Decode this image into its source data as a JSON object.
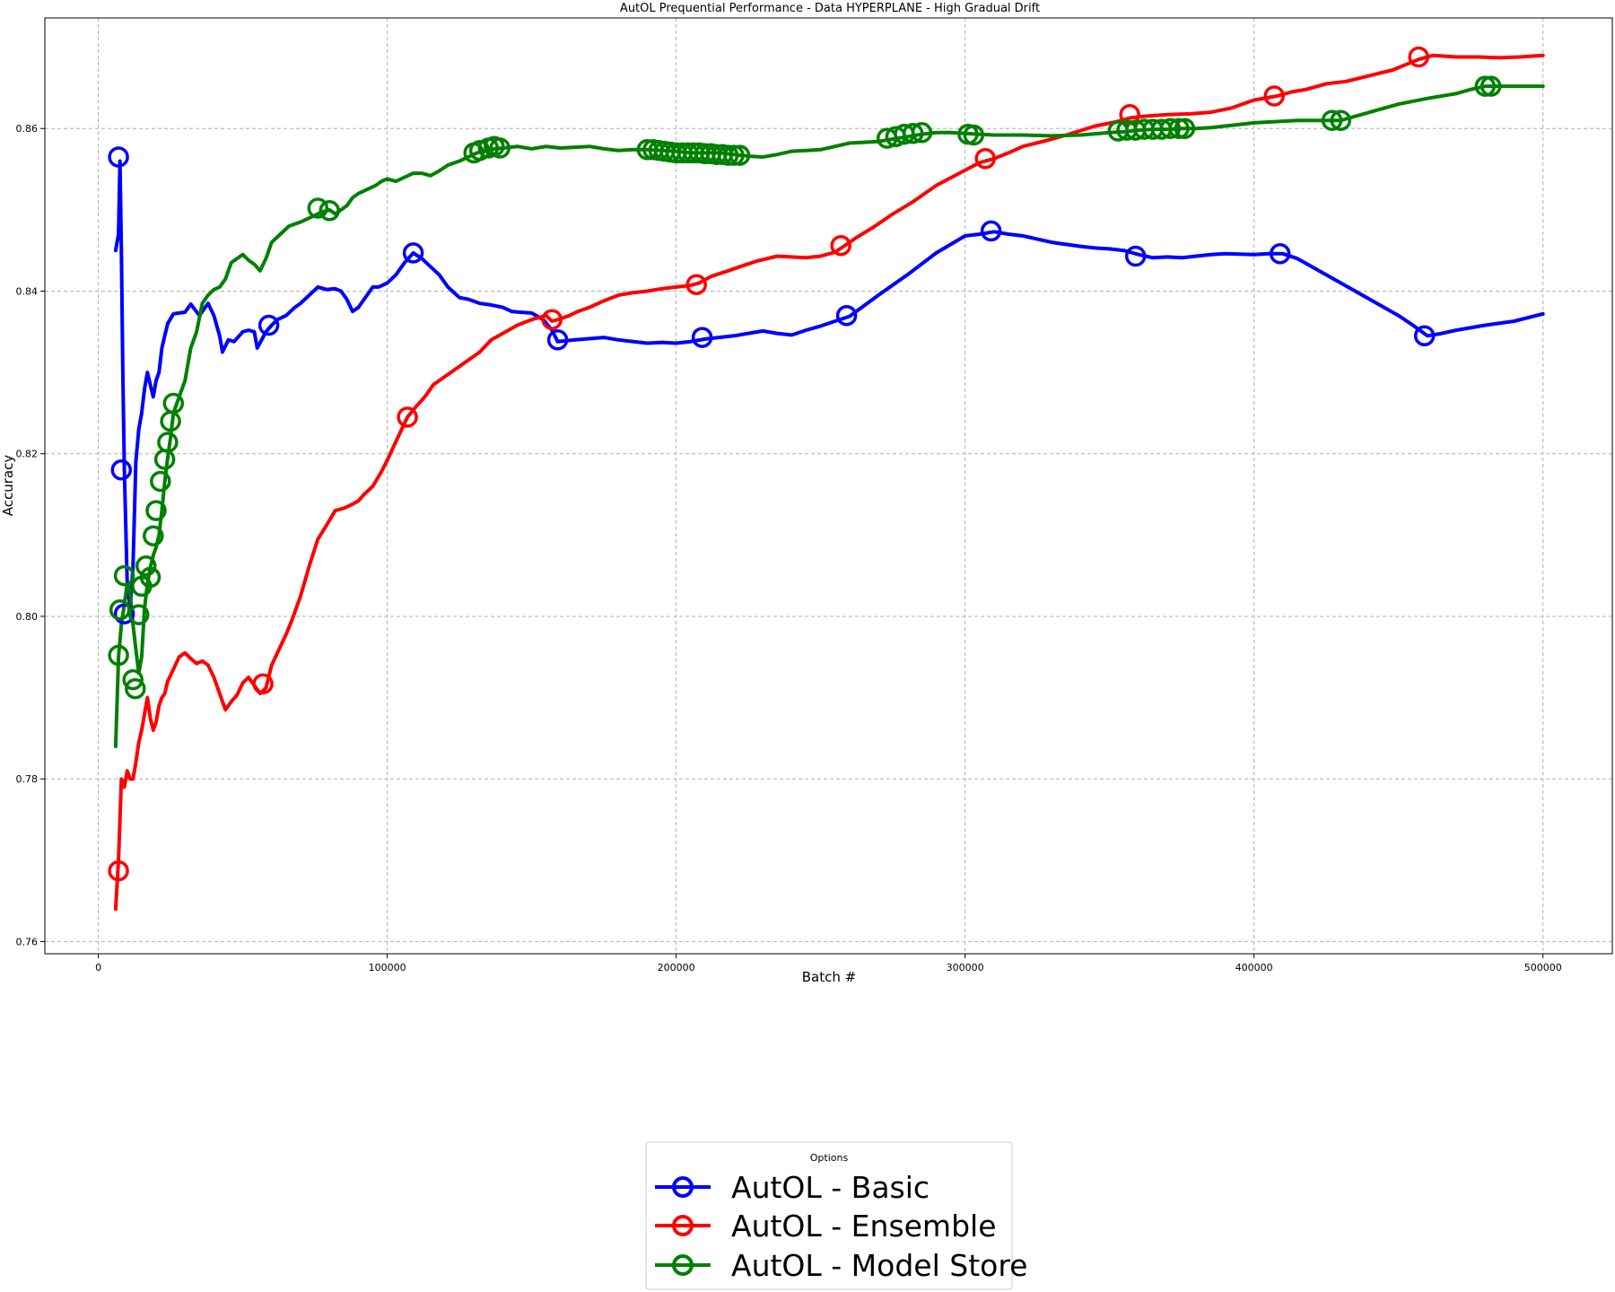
{
  "chart_data": {
    "type": "line",
    "title": "AutOL Prequential Performance - Data HYPERPLANE - High Gradual Drift",
    "xlabel": "Batch #",
    "ylabel": "Accuracy",
    "xlim": [
      -18500,
      524000
    ],
    "ylim": [
      0.7585,
      0.8736
    ],
    "xticks": [
      0,
      100000,
      200000,
      300000,
      400000,
      500000
    ],
    "yticks": [
      0.76,
      0.78,
      0.8,
      0.82,
      0.84,
      0.86
    ],
    "ytick_labels": [
      "0.76",
      "0.78",
      "0.80",
      "0.82",
      "0.84",
      "0.86"
    ],
    "grid": true,
    "legend": {
      "title": "Options",
      "placement": "bottom-center, outside plot"
    },
    "series": [
      {
        "name": "AutOL - Basic",
        "color": "#0000ff",
        "x": [
          6000,
          6500,
          7000,
          7500,
          8000,
          8500,
          9000,
          9500,
          10000,
          11000,
          12000,
          13000,
          14000,
          15000,
          16000,
          17000,
          18000,
          19000,
          20000,
          21000,
          22000,
          23000,
          24000,
          26000,
          28000,
          30000,
          32000,
          35000,
          38000,
          40000,
          42000,
          43000,
          45000,
          47000,
          50000,
          52000,
          54000,
          55000,
          58000,
          60000,
          62000,
          65000,
          68000,
          70000,
          73000,
          76000,
          79000,
          82000,
          84000,
          86000,
          88000,
          90000,
          93000,
          95000,
          97000,
          100000,
          103000,
          106000,
          109000,
          112000,
          115000,
          118000,
          121000,
          125000,
          128000,
          132000,
          136000,
          140000,
          143000,
          146000,
          150000,
          154000,
          157000,
          159000,
          165000,
          175000,
          180000,
          190000,
          195000,
          200000,
          205000,
          210000,
          220000,
          230000,
          235000,
          240000,
          245000,
          250000,
          255000,
          260000,
          270000,
          280000,
          290000,
          300000,
          305000,
          310000,
          315000,
          320000,
          330000,
          340000,
          345000,
          350000,
          355000,
          360000,
          365000,
          370000,
          375000,
          380000,
          385000,
          390000,
          400000,
          405000,
          410000,
          415000,
          420000,
          430000,
          440000,
          450000,
          455000,
          460000,
          465000,
          470000,
          480000,
          490000,
          500000
        ],
        "values": [
          0.845,
          0.846,
          0.847,
          0.856,
          0.845,
          0.83,
          0.818,
          0.811,
          0.804,
          0.801,
          0.806,
          0.819,
          0.823,
          0.825,
          0.828,
          0.83,
          0.8285,
          0.827,
          0.829,
          0.83,
          0.833,
          0.8345,
          0.836,
          0.8372,
          0.8373,
          0.8374,
          0.8384,
          0.837,
          0.8385,
          0.837,
          0.8345,
          0.8325,
          0.834,
          0.8338,
          0.835,
          0.8352,
          0.835,
          0.833,
          0.835,
          0.8358,
          0.8365,
          0.837,
          0.838,
          0.8385,
          0.8395,
          0.8405,
          0.8402,
          0.8403,
          0.84,
          0.839,
          0.8375,
          0.838,
          0.8395,
          0.8405,
          0.8405,
          0.841,
          0.842,
          0.8435,
          0.8447,
          0.844,
          0.843,
          0.842,
          0.8405,
          0.8392,
          0.839,
          0.8385,
          0.8383,
          0.838,
          0.8375,
          0.8374,
          0.8373,
          0.8365,
          0.8352,
          0.8338,
          0.834,
          0.8343,
          0.834,
          0.8336,
          0.8337,
          0.8336,
          0.8338,
          0.8341,
          0.8345,
          0.8351,
          0.8348,
          0.8346,
          0.8352,
          0.8357,
          0.8363,
          0.8369,
          0.8395,
          0.842,
          0.8447,
          0.8468,
          0.847,
          0.8473,
          0.847,
          0.8468,
          0.846,
          0.8455,
          0.8453,
          0.8452,
          0.845,
          0.8445,
          0.8441,
          0.8442,
          0.8441,
          0.8443,
          0.8445,
          0.8446,
          0.8445,
          0.8446,
          0.8446,
          0.844,
          0.843,
          0.841,
          0.839,
          0.837,
          0.8358,
          0.8345,
          0.8348,
          0.8352,
          0.8358,
          0.8363,
          0.8372
        ]
      },
      {
        "name": "AutOL - Ensemble",
        "color": "#ff0000",
        "x": [
          6000,
          7000,
          8000,
          9000,
          10000,
          11000,
          12000,
          13000,
          14000,
          15000,
          16000,
          17000,
          18000,
          19000,
          20000,
          21000,
          22000,
          23000,
          24000,
          26000,
          28000,
          30000,
          32000,
          34000,
          36000,
          38000,
          40000,
          42000,
          44000,
          46000,
          48000,
          50000,
          52000,
          54000,
          56000,
          58000,
          60000,
          62000,
          65000,
          67000,
          70000,
          73000,
          76000,
          79000,
          82000,
          85000,
          88000,
          90000,
          92000,
          95000,
          98000,
          100000,
          103000,
          107000,
          110000,
          113000,
          116000,
          120000,
          124000,
          128000,
          132000,
          136000,
          140000,
          145000,
          150000,
          155000,
          157000,
          160000,
          163000,
          166000,
          170000,
          175000,
          180000,
          185000,
          190000,
          195000,
          200000,
          205000,
          208000,
          212000,
          218000,
          222000,
          228000,
          235000,
          240000,
          245000,
          250000,
          255000,
          258000,
          262000,
          268000,
          275000,
          282000,
          290000,
          298000,
          305000,
          310000,
          315000,
          320000,
          328000,
          335000,
          345000,
          352000,
          357000,
          362000,
          370000,
          378000,
          385000,
          392000,
          400000,
          408000,
          413000,
          418000,
          425000,
          432000,
          440000,
          448000,
          457000,
          462000,
          470000,
          478000,
          485000,
          492000,
          500000
        ],
        "values": [
          0.764,
          0.77,
          0.78,
          0.779,
          0.781,
          0.78,
          0.78,
          0.782,
          0.7845,
          0.786,
          0.788,
          0.79,
          0.7875,
          0.786,
          0.787,
          0.789,
          0.79,
          0.7905,
          0.792,
          0.7935,
          0.795,
          0.7955,
          0.7948,
          0.7942,
          0.7945,
          0.794,
          0.7925,
          0.7905,
          0.7885,
          0.7895,
          0.7903,
          0.7918,
          0.7925,
          0.7915,
          0.7905,
          0.7912,
          0.794,
          0.7955,
          0.7978,
          0.7995,
          0.8025,
          0.8062,
          0.8095,
          0.8112,
          0.813,
          0.8133,
          0.8138,
          0.8142,
          0.815,
          0.816,
          0.8178,
          0.8192,
          0.8215,
          0.8245,
          0.8258,
          0.827,
          0.8285,
          0.8295,
          0.8305,
          0.8315,
          0.8325,
          0.834,
          0.8348,
          0.8358,
          0.8365,
          0.837,
          0.8363,
          0.8366,
          0.837,
          0.8375,
          0.838,
          0.8388,
          0.8395,
          0.8398,
          0.84,
          0.8403,
          0.8405,
          0.8407,
          0.841,
          0.8418,
          0.8425,
          0.843,
          0.8437,
          0.8443,
          0.8442,
          0.8441,
          0.8443,
          0.8448,
          0.8455,
          0.8465,
          0.8478,
          0.8495,
          0.851,
          0.853,
          0.8545,
          0.8558,
          0.8563,
          0.857,
          0.8578,
          0.8585,
          0.8592,
          0.8603,
          0.8608,
          0.8613,
          0.8615,
          0.8617,
          0.8618,
          0.862,
          0.8625,
          0.8635,
          0.864,
          0.8645,
          0.8648,
          0.8655,
          0.8658,
          0.8665,
          0.8672,
          0.8685,
          0.869,
          0.8688,
          0.8688,
          0.8687,
          0.8688,
          0.869
        ]
      },
      {
        "name": "AutOL - Model Store",
        "color": "#008000",
        "x": [
          6000,
          7000,
          8000,
          9000,
          10000,
          11000,
          12000,
          13000,
          14000,
          15000,
          16000,
          17000,
          18000,
          19000,
          20000,
          21000,
          22000,
          23000,
          24000,
          25000,
          26000,
          28000,
          30000,
          32000,
          34000,
          36000,
          38000,
          40000,
          42000,
          44000,
          46000,
          48000,
          50000,
          52000,
          54000,
          56000,
          58000,
          60000,
          63000,
          66000,
          70000,
          73000,
          76000,
          78000,
          80000,
          82000,
          84000,
          86000,
          88000,
          90000,
          93000,
          96000,
          98000,
          100000,
          103000,
          106000,
          109000,
          112000,
          115000,
          118000,
          121000,
          125000,
          128000,
          131000,
          134000,
          137000,
          140000,
          145000,
          150000,
          155000,
          160000,
          165000,
          170000,
          175000,
          180000,
          185000,
          190000,
          195000,
          200000,
          205000,
          210000,
          215000,
          220000,
          225000,
          230000,
          235000,
          240000,
          245000,
          250000,
          255000,
          260000,
          265000,
          270000,
          275000,
          280000,
          285000,
          290000,
          295000,
          300000,
          305000,
          310000,
          320000,
          330000,
          340000,
          350000,
          355000,
          360000,
          365000,
          370000,
          375000,
          380000,
          385000,
          390000,
          395000,
          400000,
          405000,
          410000,
          415000,
          420000,
          425000,
          430000,
          440000,
          450000,
          460000,
          465000,
          470000,
          475000,
          480000,
          490000,
          500000
        ],
        "values": [
          0.784,
          0.795,
          0.799,
          0.8015,
          0.804,
          0.803,
          0.799,
          0.796,
          0.793,
          0.795,
          0.801,
          0.804,
          0.806,
          0.8075,
          0.8085,
          0.81,
          0.813,
          0.8165,
          0.8195,
          0.822,
          0.825,
          0.827,
          0.829,
          0.833,
          0.835,
          0.8385,
          0.8395,
          0.8402,
          0.8405,
          0.8415,
          0.8435,
          0.844,
          0.8445,
          0.8438,
          0.8433,
          0.8425,
          0.844,
          0.846,
          0.847,
          0.848,
          0.8485,
          0.849,
          0.8495,
          0.8498,
          0.85,
          0.8495,
          0.85,
          0.8505,
          0.8515,
          0.852,
          0.8525,
          0.853,
          0.8535,
          0.8538,
          0.8535,
          0.854,
          0.8545,
          0.8545,
          0.8542,
          0.8548,
          0.8555,
          0.856,
          0.8565,
          0.857,
          0.8572,
          0.8575,
          0.8576,
          0.8578,
          0.8575,
          0.8578,
          0.8576,
          0.8577,
          0.8578,
          0.8575,
          0.8573,
          0.8574,
          0.8574,
          0.8573,
          0.8572,
          0.857,
          0.857,
          0.857,
          0.8568,
          0.8566,
          0.8565,
          0.8568,
          0.8572,
          0.8573,
          0.8574,
          0.8578,
          0.8582,
          0.8583,
          0.8584,
          0.8587,
          0.859,
          0.8593,
          0.8595,
          0.8595,
          0.8594,
          0.8593,
          0.8592,
          0.8592,
          0.8591,
          0.8592,
          0.8595,
          0.8596,
          0.8598,
          0.8599,
          0.8599,
          0.86,
          0.86,
          0.8601,
          0.8603,
          0.8605,
          0.8607,
          0.8608,
          0.8609,
          0.861,
          0.861,
          0.861,
          0.861,
          0.862,
          0.863,
          0.8637,
          0.864,
          0.8643,
          0.8648,
          0.8652,
          0.8652,
          0.8652
        ]
      }
    ],
    "markers": [
      {
        "series": "AutOL - Basic",
        "points": [
          [
            7000,
            0.8565
          ],
          [
            8000,
            0.818
          ],
          [
            9000,
            0.8003
          ],
          [
            59000,
            0.8358
          ],
          [
            109000,
            0.8447
          ],
          [
            159000,
            0.834
          ],
          [
            209000,
            0.8343
          ],
          [
            259000,
            0.837
          ],
          [
            309000,
            0.8474
          ],
          [
            359000,
            0.8443
          ],
          [
            409000,
            0.8446
          ],
          [
            459000,
            0.8345
          ]
        ]
      },
      {
        "series": "AutOL - Ensemble",
        "points": [
          [
            7000,
            0.7687
          ],
          [
            57000,
            0.7917
          ],
          [
            107000,
            0.8245
          ],
          [
            157000,
            0.8365
          ],
          [
            207000,
            0.8408
          ],
          [
            257000,
            0.8456
          ],
          [
            307000,
            0.8563
          ],
          [
            357000,
            0.8617
          ],
          [
            407000,
            0.864
          ],
          [
            457000,
            0.8688
          ]
        ]
      },
      {
        "series": "AutOL - Model Store",
        "points": [
          [
            7000,
            0.7952
          ],
          [
            7500,
            0.8008
          ],
          [
            9000,
            0.805
          ],
          [
            12000,
            0.7922
          ],
          [
            12800,
            0.7911
          ],
          [
            14000,
            0.8002
          ],
          [
            15000,
            0.8037
          ],
          [
            16500,
            0.8062
          ],
          [
            18000,
            0.8048
          ],
          [
            19000,
            0.8099
          ],
          [
            20000,
            0.813
          ],
          [
            21500,
            0.8166
          ],
          [
            23000,
            0.8193
          ],
          [
            24000,
            0.8214
          ],
          [
            25000,
            0.824
          ],
          [
            26000,
            0.8262
          ],
          [
            76000,
            0.8502
          ],
          [
            80000,
            0.8499
          ],
          [
            130000,
            0.857
          ],
          [
            132000,
            0.8573
          ],
          [
            135000,
            0.8576
          ],
          [
            137000,
            0.8578
          ],
          [
            139000,
            0.8576
          ],
          [
            190000,
            0.8574
          ],
          [
            192000,
            0.8574
          ],
          [
            194000,
            0.8573
          ],
          [
            196000,
            0.8572
          ],
          [
            198000,
            0.8571
          ],
          [
            200000,
            0.857
          ],
          [
            202000,
            0.857
          ],
          [
            204000,
            0.857
          ],
          [
            206000,
            0.857
          ],
          [
            208000,
            0.857
          ],
          [
            210000,
            0.8569
          ],
          [
            212000,
            0.8569
          ],
          [
            214000,
            0.8568
          ],
          [
            216000,
            0.8568
          ],
          [
            218000,
            0.8567
          ],
          [
            220000,
            0.8567
          ],
          [
            222000,
            0.8567
          ],
          [
            273000,
            0.8588
          ],
          [
            276000,
            0.859
          ],
          [
            279000,
            0.8593
          ],
          [
            282000,
            0.8594
          ],
          [
            285000,
            0.8595
          ],
          [
            301000,
            0.8593
          ],
          [
            303000,
            0.8592
          ],
          [
            353000,
            0.8597
          ],
          [
            356000,
            0.8598
          ],
          [
            359000,
            0.8598
          ],
          [
            362000,
            0.8599
          ],
          [
            365000,
            0.8599
          ],
          [
            368000,
            0.8599
          ],
          [
            371000,
            0.86
          ],
          [
            374000,
            0.86
          ],
          [
            376000,
            0.86
          ],
          [
            427000,
            0.861
          ],
          [
            430000,
            0.861
          ],
          [
            480000,
            0.8652
          ],
          [
            482000,
            0.8652
          ]
        ]
      }
    ]
  }
}
